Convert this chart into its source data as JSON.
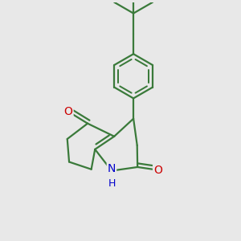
{
  "background_color": "#e8e8e8",
  "bond_color": "#3a7a3a",
  "N_color": "#0000cc",
  "O_color": "#cc0000",
  "line_width": 1.6,
  "figsize": [
    3.0,
    3.0
  ],
  "dpi": 100,
  "xlim": [
    -2.5,
    2.5
  ],
  "ylim": [
    -3.2,
    3.2
  ]
}
